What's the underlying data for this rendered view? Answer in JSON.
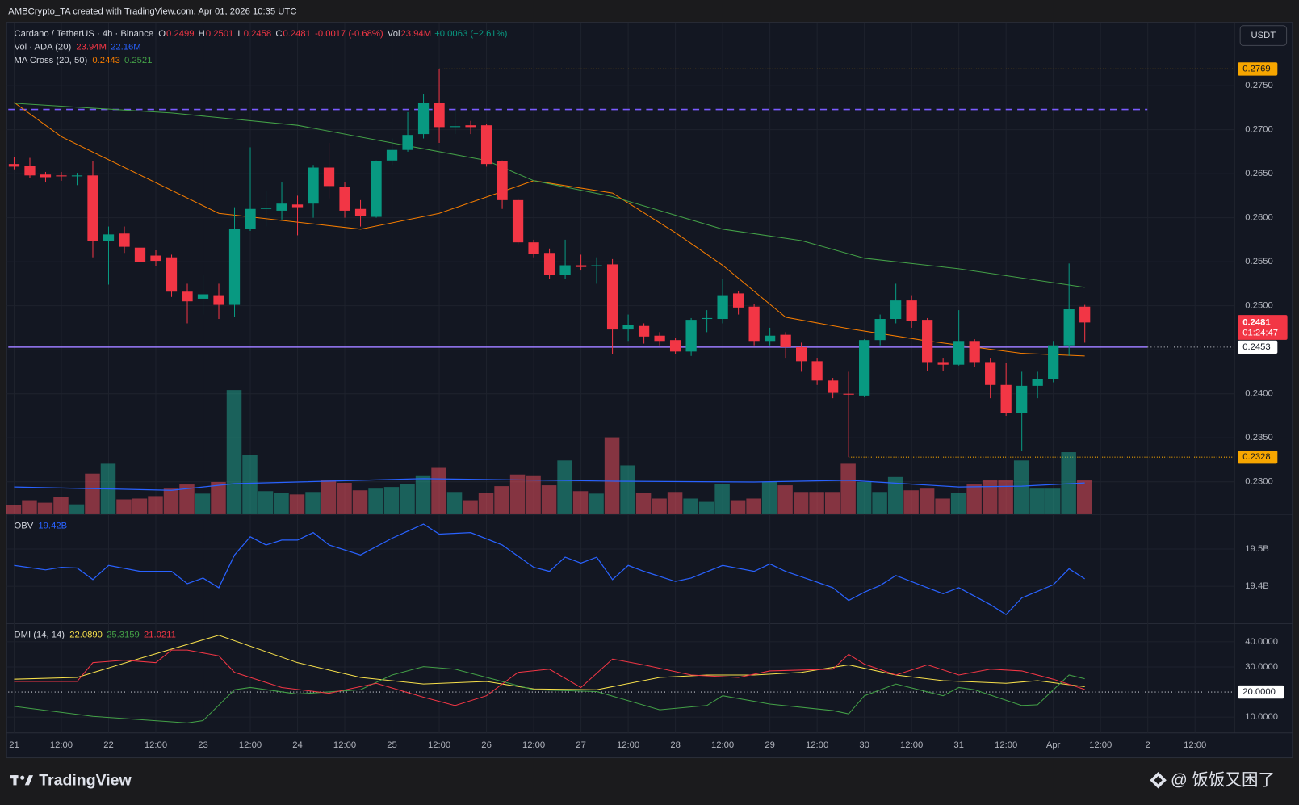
{
  "header": {
    "text": "AMBCrypto_TA created with TradingView.com, Apr 01, 2026 10:35 UTC"
  },
  "footer": {
    "brand": "TradingView",
    "watermark": "@ 饭饭又困了"
  },
  "chart_data": [
    {
      "type": "candlestick",
      "title": "Cardano / TetherUS · 4h · Binance",
      "legend_keys": [
        "O",
        "H",
        "L",
        "C"
      ],
      "change_label": "-0.0017 (-0.68%)",
      "currency": "USDT",
      "countdown": "01:24:47",
      "up_color": "#089981",
      "down_color": "#f23645",
      "marker_color": "#f7a600",
      "open": [
        0.2661,
        0.2659,
        0.2649,
        0.2648,
        0.2647,
        0.2648,
        0.2574,
        0.2582,
        0.2566,
        0.2557,
        0.2555,
        0.2516,
        0.2508,
        0.2512,
        0.2501,
        0.2587,
        0.261,
        0.2608,
        0.2615,
        0.2616,
        0.2657,
        0.2635,
        0.261,
        0.2601,
        0.2665,
        0.2677,
        0.2695,
        0.273,
        0.2703,
        0.2705,
        0.2705,
        0.2664,
        0.262,
        0.2572,
        0.256,
        0.2535,
        0.2546,
        0.2545,
        0.2547,
        0.2473,
        0.2477,
        0.2466,
        0.2461,
        0.2448,
        0.2485,
        0.2485,
        0.2514,
        0.2499,
        0.246,
        0.2467,
        0.2453,
        0.2437,
        0.2415,
        0.24,
        0.2398,
        0.2461,
        0.2485,
        0.2506,
        0.2484,
        0.2436,
        0.2433,
        0.246,
        0.2436,
        0.241,
        0.2378,
        0.2409,
        0.2417,
        0.2455,
        0.2499
      ],
      "high": [
        0.2669,
        0.2668,
        0.2652,
        0.2652,
        0.2651,
        0.2664,
        0.259,
        0.259,
        0.2575,
        0.2563,
        0.2558,
        0.2525,
        0.2535,
        0.2525,
        0.2612,
        0.268,
        0.263,
        0.264,
        0.2625,
        0.266,
        0.2685,
        0.264,
        0.262,
        0.2665,
        0.269,
        0.272,
        0.274,
        0.2769,
        0.2725,
        0.271,
        0.2707,
        0.2665,
        0.2622,
        0.2575,
        0.2565,
        0.2575,
        0.2558,
        0.2555,
        0.2553,
        0.249,
        0.248,
        0.247,
        0.2463,
        0.2486,
        0.2495,
        0.253,
        0.2517,
        0.2502,
        0.2475,
        0.247,
        0.2458,
        0.244,
        0.2418,
        0.2425,
        0.2462,
        0.249,
        0.2525,
        0.2512,
        0.2486,
        0.244,
        0.2495,
        0.2462,
        0.244,
        0.2435,
        0.2425,
        0.2425,
        0.246,
        0.2548,
        0.2501
      ],
      "low": [
        0.2655,
        0.2645,
        0.264,
        0.2642,
        0.2637,
        0.2555,
        0.2524,
        0.256,
        0.254,
        0.2545,
        0.251,
        0.248,
        0.249,
        0.2485,
        0.2487,
        0.2585,
        0.259,
        0.2598,
        0.258,
        0.26,
        0.2622,
        0.26,
        0.259,
        0.26,
        0.266,
        0.2675,
        0.269,
        0.2685,
        0.2695,
        0.2695,
        0.2658,
        0.261,
        0.257,
        0.2555,
        0.253,
        0.253,
        0.254,
        0.2525,
        0.2445,
        0.246,
        0.2457,
        0.2455,
        0.2445,
        0.2443,
        0.247,
        0.248,
        0.249,
        0.2455,
        0.2455,
        0.244,
        0.2425,
        0.241,
        0.2395,
        0.2328,
        0.2396,
        0.2455,
        0.248,
        0.2475,
        0.2426,
        0.2426,
        0.2432,
        0.243,
        0.2395,
        0.2375,
        0.2335,
        0.2395,
        0.2413,
        0.2443,
        0.2458
      ],
      "close": [
        0.2658,
        0.2648,
        0.2646,
        0.2647,
        0.2648,
        0.2574,
        0.2581,
        0.2567,
        0.255,
        0.2551,
        0.2516,
        0.2505,
        0.2513,
        0.2501,
        0.2587,
        0.261,
        0.2611,
        0.2616,
        0.2612,
        0.2657,
        0.2636,
        0.2608,
        0.2602,
        0.2664,
        0.2677,
        0.2694,
        0.273,
        0.2703,
        0.2704,
        0.2703,
        0.2661,
        0.262,
        0.2572,
        0.2559,
        0.2535,
        0.2546,
        0.2544,
        0.2546,
        0.2473,
        0.2478,
        0.2465,
        0.246,
        0.2448,
        0.2484,
        0.2486,
        0.2512,
        0.2498,
        0.246,
        0.2466,
        0.2453,
        0.2437,
        0.2415,
        0.2401,
        0.2399,
        0.2461,
        0.2485,
        0.2506,
        0.2483,
        0.2436,
        0.2433,
        0.246,
        0.2436,
        0.241,
        0.2378,
        0.2409,
        0.2417,
        0.2455,
        0.2496,
        0.2481
      ],
      "high_marker": 27,
      "low_marker": 53,
      "xlim": [
        -0.37,
        77.5
      ],
      "xticks": [
        {
          "value": 0,
          "label": "21"
        },
        {
          "value": 3,
          "label": "12:00"
        },
        {
          "value": 6,
          "label": "22"
        },
        {
          "value": 9,
          "label": "12:00"
        },
        {
          "value": 12,
          "label": "23"
        },
        {
          "value": 15,
          "label": "12:00"
        },
        {
          "value": 18,
          "label": "24"
        },
        {
          "value": 21,
          "label": "12:00"
        },
        {
          "value": 24,
          "label": "25"
        },
        {
          "value": 27,
          "label": "12:00"
        },
        {
          "value": 30,
          "label": "26"
        },
        {
          "value": 33,
          "label": "12:00"
        },
        {
          "value": 36,
          "label": "27"
        },
        {
          "value": 39,
          "label": "12:00"
        },
        {
          "value": 42,
          "label": "28"
        },
        {
          "value": 45,
          "label": "12:00"
        },
        {
          "value": 48,
          "label": "29"
        },
        {
          "value": 51,
          "label": "12:00"
        },
        {
          "value": 54,
          "label": "30"
        },
        {
          "value": 57,
          "label": "12:00"
        },
        {
          "value": 60,
          "label": "31"
        },
        {
          "value": 63,
          "label": "12:00"
        },
        {
          "value": 66,
          "label": "Apr"
        },
        {
          "value": 69,
          "label": "12:00"
        },
        {
          "value": 72,
          "label": "2"
        },
        {
          "value": 75,
          "label": "12:00"
        }
      ],
      "ylim": [
        0.2264,
        0.2821
      ],
      "yticks": [
        {
          "value": 0.23,
          "label": "0.2300"
        },
        {
          "value": 0.235,
          "label": "0.2350"
        },
        {
          "value": 0.24,
          "label": "0.2400"
        },
        {
          "value": 0.245,
          "label": "0.2450"
        },
        {
          "value": 0.25,
          "label": "0.2500"
        },
        {
          "value": 0.255,
          "label": "0.2550"
        },
        {
          "value": 0.26,
          "label": "0.2600"
        },
        {
          "value": 0.265,
          "label": "0.2650"
        },
        {
          "value": 0.27,
          "label": "0.2700"
        },
        {
          "value": 0.275,
          "label": "0.2750"
        }
      ],
      "grid": true,
      "ma": {
        "name": "MA Cross (20, 50)",
        "lines": [
          {
            "color": "#f57c00",
            "x": [
              0,
              3,
              13,
              22,
              27,
              33,
              38,
              42,
              45,
              49,
              53,
              58,
              64,
              68
            ],
            "values": [
              0.2731,
              0.2692,
              0.2605,
              0.2587,
              0.2605,
              0.2642,
              0.2628,
              0.2583,
              0.2546,
              0.2487,
              0.2474,
              0.246,
              0.2446,
              0.2443
            ]
          },
          {
            "color": "#43a047",
            "x": [
              0,
              10,
              18,
              30,
              33,
              38,
              45,
              50,
              54,
              60,
              68
            ],
            "values": [
              0.273,
              0.2719,
              0.2705,
              0.2665,
              0.2642,
              0.2624,
              0.2587,
              0.2574,
              0.2554,
              0.2542,
              0.2521
            ]
          }
        ]
      },
      "hlines": [
        {
          "value": 0.2453,
          "color": "#9c7bff"
        },
        {
          "value": 0.2723,
          "color": "#7b5cff",
          "dashed": true
        }
      ]
    },
    {
      "type": "bar",
      "name": "Vol · ADA (20)",
      "short_name": "Vol",
      "change_label": "+0.0063 (+2.61%)",
      "up_color": "rgba(34,171,148,0.5)",
      "down_color": "rgba(247,82,95,0.5)",
      "values": [
        6,
        9.6,
        7.8,
        12,
        6.6,
        28.8,
        36,
        10.2,
        10.8,
        12.6,
        18,
        21,
        14.4,
        22.8,
        89.4,
        42.6,
        16.2,
        15,
        13.8,
        15.6,
        24,
        22.2,
        16.8,
        18,
        19.2,
        21.6,
        27.6,
        33,
        15.6,
        9.6,
        15,
        19.8,
        28.2,
        27.6,
        20.4,
        38.4,
        16.2,
        14.4,
        55.2,
        34.8,
        15,
        10.8,
        15.6,
        10.8,
        8.4,
        21.6,
        9.6,
        10.8,
        22.8,
        20.4,
        15.6,
        15.6,
        15.6,
        36,
        22.8,
        15.6,
        26.4,
        16.8,
        18,
        10.8,
        15,
        21,
        24,
        24,
        38.4,
        18,
        18,
        44.4,
        23.94
      ],
      "value_labels": [
        null,
        null,
        null,
        null,
        null,
        null,
        null,
        null,
        null,
        null,
        null,
        null,
        null,
        null,
        null,
        null,
        null,
        null,
        null,
        null,
        null,
        null,
        null,
        null,
        null,
        null,
        null,
        null,
        null,
        null,
        null,
        null,
        null,
        null,
        null,
        null,
        null,
        null,
        null,
        null,
        null,
        null,
        null,
        null,
        null,
        null,
        null,
        null,
        null,
        null,
        null,
        null,
        null,
        null,
        null,
        null,
        null,
        null,
        null,
        null,
        null,
        null,
        null,
        null,
        null,
        null,
        null,
        null,
        "23.94M"
      ],
      "ylim": [
        0,
        355.2
      ],
      "ma": {
        "color": "#2962ff",
        "x": [
          0,
          10,
          14,
          26,
          38,
          47,
          53,
          60,
          64,
          68
        ],
        "values": [
          19.2,
          16.8,
          21.6,
          25.2,
          23.4,
          22.8,
          24,
          19.2,
          19.8,
          22.16
        ],
        "value_labels": [
          null,
          null,
          null,
          null,
          null,
          null,
          null,
          null,
          null,
          "22.16M"
        ]
      }
    },
    {
      "type": "line",
      "name": "OBV",
      "color": "#2962ff",
      "x": [
        0,
        2,
        3,
        4,
        5,
        6,
        8,
        10,
        11,
        12,
        13,
        14,
        15,
        16,
        17,
        18,
        19,
        20,
        22,
        24,
        26,
        27,
        29,
        31,
        33,
        34,
        35,
        36,
        37,
        38,
        39,
        40,
        42,
        43,
        45,
        47,
        48,
        49,
        51,
        52,
        53,
        54,
        55,
        56,
        58,
        59,
        60,
        62,
        63,
        64,
        66,
        67,
        68
      ],
      "values": [
        19.456,
        19.444,
        19.451,
        19.449,
        19.418,
        19.456,
        19.44,
        19.44,
        19.407,
        19.422,
        19.396,
        19.484,
        19.533,
        19.511,
        19.524,
        19.524,
        19.544,
        19.511,
        19.484,
        19.529,
        19.567,
        19.54,
        19.544,
        19.511,
        19.451,
        19.44,
        19.478,
        19.462,
        19.478,
        19.418,
        19.456,
        19.44,
        19.413,
        19.422,
        19.456,
        19.44,
        19.46,
        19.44,
        19.411,
        19.396,
        19.362,
        19.384,
        19.402,
        19.429,
        19.396,
        19.38,
        19.396,
        19.351,
        19.324,
        19.369,
        19.404,
        19.447,
        19.42
      ],
      "value_labels": [
        null,
        null,
        null,
        null,
        null,
        null,
        null,
        null,
        null,
        null,
        null,
        null,
        null,
        null,
        null,
        null,
        null,
        null,
        null,
        null,
        null,
        null,
        null,
        null,
        null,
        null,
        null,
        null,
        null,
        null,
        null,
        null,
        null,
        null,
        null,
        null,
        null,
        null,
        null,
        null,
        null,
        null,
        null,
        null,
        null,
        null,
        null,
        null,
        null,
        null,
        null,
        null,
        "19.42B"
      ],
      "ylim": [
        19.302,
        19.591
      ],
      "yticks": [
        {
          "value": 19.5,
          "label": "19.5B"
        },
        {
          "value": 19.4,
          "label": "19.4B"
        }
      ],
      "grid": true
    },
    {
      "type": "line",
      "name": "DMI (14, 14)",
      "series": [
        {
          "color": "#f7e04b",
          "x": [
            0,
            4,
            8,
            13,
            18,
            22,
            26,
            30,
            33,
            37,
            41,
            44,
            47,
            50,
            53,
            56,
            59,
            63,
            65,
            68
          ],
          "values": [
            25.1,
            25.8,
            33.4,
            42.6,
            31.7,
            25.8,
            23.2,
            24.2,
            21.2,
            20.9,
            25.8,
            26.8,
            26.8,
            27.8,
            30.8,
            26.8,
            24.5,
            23.5,
            24.5,
            22.089
          ],
          "value_labels": [
            null,
            null,
            null,
            null,
            null,
            null,
            null,
            null,
            null,
            null,
            null,
            null,
            null,
            null,
            null,
            null,
            null,
            null,
            null,
            "22.0890"
          ]
        },
        {
          "color": "#43a047",
          "x": [
            0,
            5,
            11,
            12,
            14,
            15,
            18,
            22,
            24,
            26,
            28,
            31,
            33,
            37,
            41,
            44,
            45,
            48,
            52,
            53,
            54,
            56,
            59,
            60,
            61,
            64,
            65,
            67,
            68
          ],
          "values": [
            14.3,
            10.3,
            7.7,
            8.6,
            20.9,
            21.8,
            19.2,
            20.9,
            26.8,
            30.1,
            29.1,
            24.2,
            20.9,
            20.2,
            12.9,
            14.6,
            18.5,
            15.2,
            12.6,
            11.3,
            18.5,
            23.2,
            18.5,
            21.8,
            20.9,
            14.6,
            14.9,
            26.8,
            25.3159
          ],
          "value_labels": [
            null,
            null,
            null,
            null,
            null,
            null,
            null,
            null,
            null,
            null,
            null,
            null,
            null,
            null,
            null,
            null,
            null,
            null,
            null,
            null,
            null,
            null,
            null,
            null,
            null,
            null,
            null,
            null,
            "25.3159"
          ]
        },
        {
          "color": "#f23645",
          "x": [
            0,
            4,
            5,
            7,
            9,
            10,
            11,
            13,
            14,
            17,
            20,
            23,
            26,
            28,
            30,
            32,
            34,
            36,
            38,
            40,
            43,
            46,
            48,
            52,
            53,
            54,
            56,
            58,
            60,
            62,
            64,
            66,
            68
          ],
          "values": [
            24.2,
            24.2,
            31.7,
            32.7,
            31.7,
            36.7,
            36.7,
            34.4,
            27.8,
            21.8,
            19.5,
            23.5,
            17.9,
            14.6,
            18.5,
            27.8,
            29.1,
            21.8,
            33.1,
            30.8,
            26.8,
            25.8,
            28.4,
            29.1,
            35.0,
            31.1,
            26.8,
            30.8,
            26.8,
            29.1,
            28.4,
            25.1,
            21.0211
          ],
          "value_labels": [
            null,
            null,
            null,
            null,
            null,
            null,
            null,
            null,
            null,
            null,
            null,
            null,
            null,
            null,
            null,
            null,
            null,
            null,
            null,
            null,
            null,
            null,
            null,
            null,
            null,
            null,
            null,
            null,
            null,
            null,
            null,
            null,
            "21.0211"
          ]
        }
      ],
      "ylim": [
        3.7,
        46.9
      ],
      "yticks": [
        {
          "value": 40,
          "label": "40.0000"
        },
        {
          "value": 30,
          "label": "30.0000"
        },
        {
          "value": 10,
          "label": "10.0000"
        }
      ],
      "grid": true,
      "hline": {
        "value": 20,
        "label": "20.0000"
      }
    }
  ]
}
